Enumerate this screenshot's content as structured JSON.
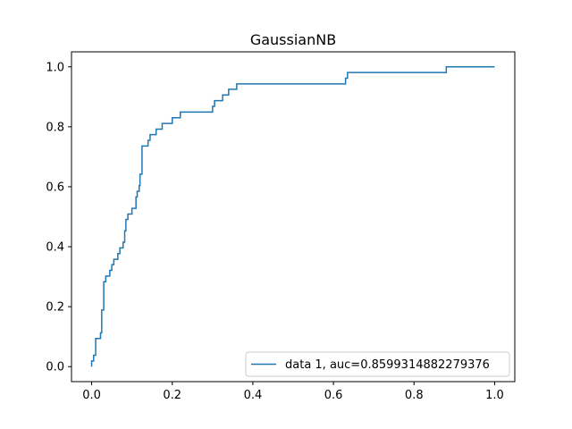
{
  "chart_data": {
    "type": "line",
    "title": "GaussianNB",
    "xlabel": "",
    "ylabel": "",
    "xlim": [
      -0.05,
      1.05
    ],
    "ylim": [
      -0.05,
      1.05
    ],
    "xticks": [
      0.0,
      0.2,
      0.4,
      0.6,
      0.8,
      1.0
    ],
    "yticks": [
      0.0,
      0.2,
      0.4,
      0.6,
      0.8,
      1.0
    ],
    "xtick_labels": [
      "0.0",
      "0.2",
      "0.4",
      "0.6",
      "0.8",
      "1.0"
    ],
    "ytick_labels": [
      "0.0",
      "0.2",
      "0.4",
      "0.6",
      "0.8",
      "1.0"
    ],
    "grid": false,
    "legend_position": "lower-right",
    "series": [
      {
        "name": "data 1, auc=0.8599314882279376",
        "color": "#1f77b4",
        "x": [
          0.0,
          0.0,
          0.005,
          0.005,
          0.01,
          0.01,
          0.022,
          0.022,
          0.025,
          0.025,
          0.03,
          0.03,
          0.035,
          0.035,
          0.045,
          0.045,
          0.05,
          0.05,
          0.055,
          0.055,
          0.065,
          0.065,
          0.07,
          0.07,
          0.078,
          0.078,
          0.082,
          0.082,
          0.085,
          0.085,
          0.09,
          0.09,
          0.1,
          0.1,
          0.11,
          0.11,
          0.113,
          0.113,
          0.118,
          0.118,
          0.12,
          0.12,
          0.125,
          0.125,
          0.14,
          0.14,
          0.145,
          0.145,
          0.16,
          0.16,
          0.175,
          0.175,
          0.2,
          0.2,
          0.22,
          0.22,
          0.3,
          0.3,
          0.305,
          0.305,
          0.325,
          0.325,
          0.34,
          0.34,
          0.36,
          0.36,
          0.63,
          0.63,
          0.635,
          0.635,
          0.88,
          0.88,
          1.0
        ],
        "y": [
          0.0,
          0.019,
          0.019,
          0.038,
          0.038,
          0.094,
          0.094,
          0.113,
          0.113,
          0.189,
          0.189,
          0.283,
          0.283,
          0.302,
          0.302,
          0.321,
          0.321,
          0.34,
          0.34,
          0.358,
          0.358,
          0.377,
          0.377,
          0.396,
          0.396,
          0.415,
          0.415,
          0.453,
          0.453,
          0.491,
          0.491,
          0.509,
          0.509,
          0.528,
          0.528,
          0.566,
          0.566,
          0.585,
          0.585,
          0.604,
          0.604,
          0.642,
          0.642,
          0.736,
          0.736,
          0.755,
          0.755,
          0.774,
          0.774,
          0.792,
          0.792,
          0.811,
          0.811,
          0.83,
          0.83,
          0.849,
          0.849,
          0.868,
          0.868,
          0.887,
          0.887,
          0.906,
          0.906,
          0.925,
          0.925,
          0.943,
          0.943,
          0.962,
          0.962,
          0.981,
          0.981,
          1.0,
          1.0
        ]
      }
    ]
  }
}
